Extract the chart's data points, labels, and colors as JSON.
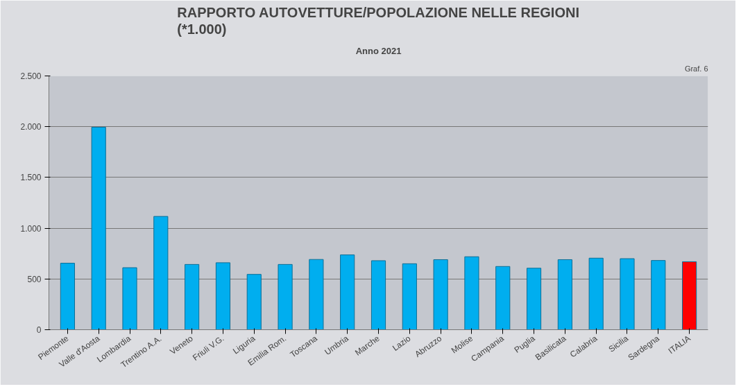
{
  "chart_data": {
    "type": "bar",
    "title": "RAPPORTO AUTOVETTURE/POPOLAZIONE NELLE REGIONI\n(*1.000)",
    "subtitle": "Anno 2021",
    "annotations": [
      "Graf. 6"
    ],
    "categories": [
      "Piemonte",
      "Valle d'Aosta",
      "Lombardia",
      "Trentino A.A.",
      "Veneto",
      "Friuli V.G.",
      "Liguria",
      "Emilia Rom.",
      "Toscana",
      "Umbria",
      "Marche",
      "Lazio",
      "Abruzzo",
      "Molise",
      "Campania",
      "Puglia",
      "Basilicata",
      "Calabria",
      "Sicilia",
      "Sardegna",
      "ITALIA"
    ],
    "values": [
      655,
      1995,
      611,
      1116,
      643,
      660,
      545,
      643,
      692,
      737,
      680,
      650,
      690,
      719,
      623,
      606,
      690,
      705,
      700,
      682,
      670
    ],
    "colors": [
      "#00aeef",
      "#00aeef",
      "#00aeef",
      "#00aeef",
      "#00aeef",
      "#00aeef",
      "#00aeef",
      "#00aeef",
      "#00aeef",
      "#00aeef",
      "#00aeef",
      "#00aeef",
      "#00aeef",
      "#00aeef",
      "#00aeef",
      "#00aeef",
      "#00aeef",
      "#00aeef",
      "#00aeef",
      "#00aeef",
      "#ff0000"
    ],
    "ylim": [
      0,
      2500
    ],
    "yticks": [
      0,
      {
        "value": 500,
        "label": "500"
      },
      {
        "value": 1000,
        "label": "1.000"
      },
      {
        "value": 1500,
        "label": "1.500"
      },
      {
        "value": 2000,
        "label": "2.000"
      },
      {
        "value": 2500,
        "label": "2.500"
      }
    ],
    "grid": "y"
  }
}
